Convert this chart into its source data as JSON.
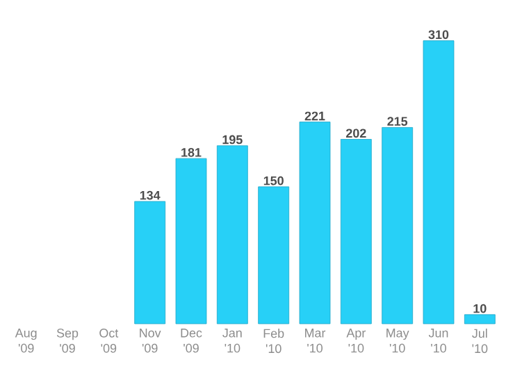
{
  "chart_data": {
    "type": "bar",
    "categories": [
      "Aug '09",
      "Sep '09",
      "Oct '09",
      "Nov '09",
      "Dec '09",
      "Jan '10",
      "Feb '10",
      "Mar '10",
      "Apr '10",
      "May '10",
      "Jun '10",
      "Jul '10"
    ],
    "values": [
      null,
      null,
      null,
      134,
      181,
      195,
      150,
      221,
      202,
      215,
      310,
      10
    ],
    "color": "#27d0f7",
    "data_labels": true
  }
}
